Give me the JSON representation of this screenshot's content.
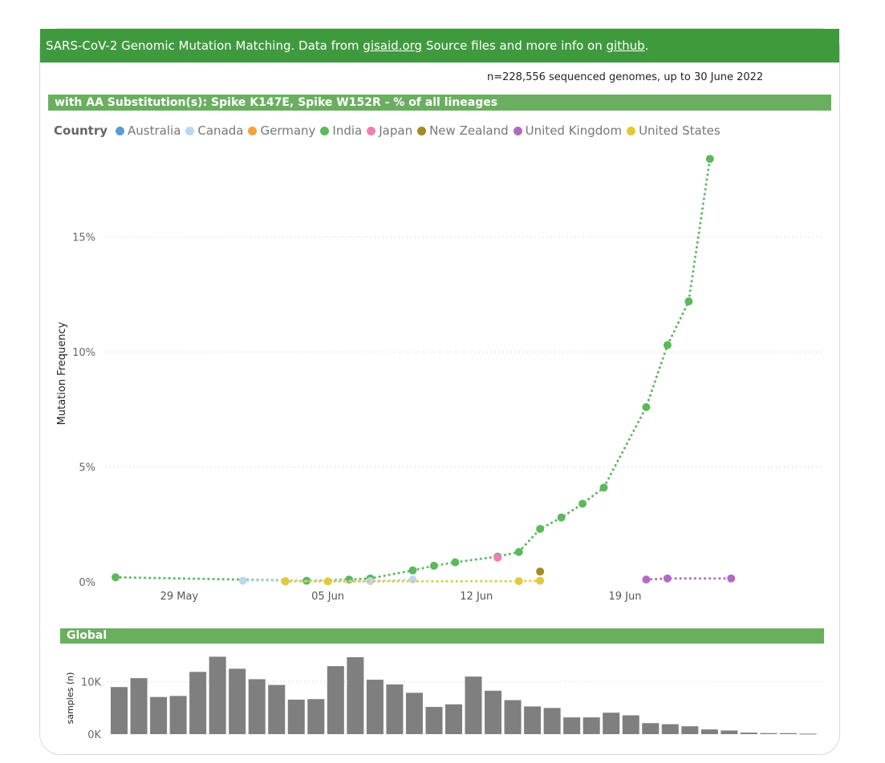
{
  "header": {
    "banner_pre": "SARS-CoV-2 Genomic Mutation Matching. Data from ",
    "gisaid_link": "gisaid.org",
    "banner_mid": " Source files and more info on ",
    "github_link": "github",
    "banner_post": ".",
    "n_genomes": "n=228,556 sequenced genomes, up to 30 June 2022"
  },
  "colors": {
    "banner": "#3f9a3e",
    "section": "#6aaf5f",
    "bars": "#7f7f7f"
  },
  "legend": {
    "title": "Country",
    "items": [
      {
        "label": "Australia",
        "color": "#5b9bd5"
      },
      {
        "label": "Canada",
        "color": "#bdd7ee"
      },
      {
        "label": "Germany",
        "color": "#f4a13e"
      },
      {
        "label": "India",
        "color": "#5cb85c"
      },
      {
        "label": "Japan",
        "color": "#ef7fb2"
      },
      {
        "label": "New Zealand",
        "color": "#a58a2a"
      },
      {
        "label": "United Kingdom",
        "color": "#b26bc4"
      },
      {
        "label": "United States",
        "color": "#e3c93a"
      }
    ]
  },
  "chart_data": [
    {
      "type": "line",
      "title": "with AA Substitution(s): Spike K147E, Spike W152R - % of all lineages",
      "ylabel": "Mutation Frequency",
      "xlabel": "",
      "ylim": [
        0,
        19
      ],
      "yticks": [
        0,
        5,
        10,
        15
      ],
      "ytick_labels": [
        "0%",
        "5%",
        "10%",
        "15%"
      ],
      "xticks": [
        "2022-05-29",
        "2022-06-05",
        "2022-06-12",
        "2022-06-19"
      ],
      "xtick_labels": [
        "29 May",
        "05 Jun",
        "12 Jun",
        "19 Jun"
      ],
      "xlim": [
        "2022-05-26",
        "2022-06-30"
      ],
      "grid": true,
      "legend_position": "top-left",
      "series": [
        {
          "name": "India",
          "color": "#5cb85c",
          "points": [
            [
              "2022-05-26",
              0.2
            ],
            [
              "2022-06-04",
              0.05
            ],
            [
              "2022-06-06",
              0.1
            ],
            [
              "2022-06-07",
              0.15
            ],
            [
              "2022-06-09",
              0.5
            ],
            [
              "2022-06-10",
              0.7
            ],
            [
              "2022-06-11",
              0.85
            ],
            [
              "2022-06-13",
              1.1
            ],
            [
              "2022-06-14",
              1.3
            ],
            [
              "2022-06-15",
              2.3
            ],
            [
              "2022-06-16",
              2.8
            ],
            [
              "2022-06-17",
              3.4
            ],
            [
              "2022-06-18",
              4.1
            ],
            [
              "2022-06-20",
              7.6
            ],
            [
              "2022-06-21",
              10.3
            ],
            [
              "2022-06-22",
              12.2
            ],
            [
              "2022-06-23",
              18.4
            ]
          ]
        },
        {
          "name": "Canada",
          "color": "#bdd7ee",
          "points": [
            [
              "2022-06-01",
              0.05
            ],
            [
              "2022-06-07",
              0.03
            ],
            [
              "2022-06-09",
              0.1
            ]
          ]
        },
        {
          "name": "Germany",
          "color": "#f4a13e",
          "points": [
            [
              "2022-06-03",
              0.03
            ]
          ]
        },
        {
          "name": "Japan",
          "color": "#ef7fb2",
          "points": [
            [
              "2022-06-13",
              1.05
            ]
          ]
        },
        {
          "name": "New Zealand",
          "color": "#a58a2a",
          "points": [
            [
              "2022-06-15",
              0.45
            ]
          ]
        },
        {
          "name": "United States",
          "color": "#e3c93a",
          "points": [
            [
              "2022-06-03",
              0.02
            ],
            [
              "2022-06-05",
              0.02
            ],
            [
              "2022-06-14",
              0.03
            ],
            [
              "2022-06-15",
              0.05
            ]
          ]
        },
        {
          "name": "United Kingdom",
          "color": "#b26bc4",
          "points": [
            [
              "2022-06-20",
              0.1
            ],
            [
              "2022-06-21",
              0.15
            ],
            [
              "2022-06-24",
              0.15
            ]
          ]
        }
      ]
    },
    {
      "type": "bar",
      "title": "Global",
      "ylabel": "samples (n)",
      "ylim": [
        0,
        17000
      ],
      "yticks": [
        0,
        10000
      ],
      "ytick_labels": [
        "0K",
        "10K"
      ],
      "values": [
        9000,
        10700,
        7100,
        7300,
        11900,
        14800,
        12500,
        10500,
        9400,
        6600,
        6700,
        13000,
        14700,
        10400,
        9500,
        7900,
        5200,
        5700,
        11000,
        8300,
        6500,
        5300,
        5000,
        3200,
        3200,
        4100,
        3600,
        2100,
        1900,
        1500,
        900,
        700,
        300,
        200,
        200,
        100
      ]
    }
  ]
}
